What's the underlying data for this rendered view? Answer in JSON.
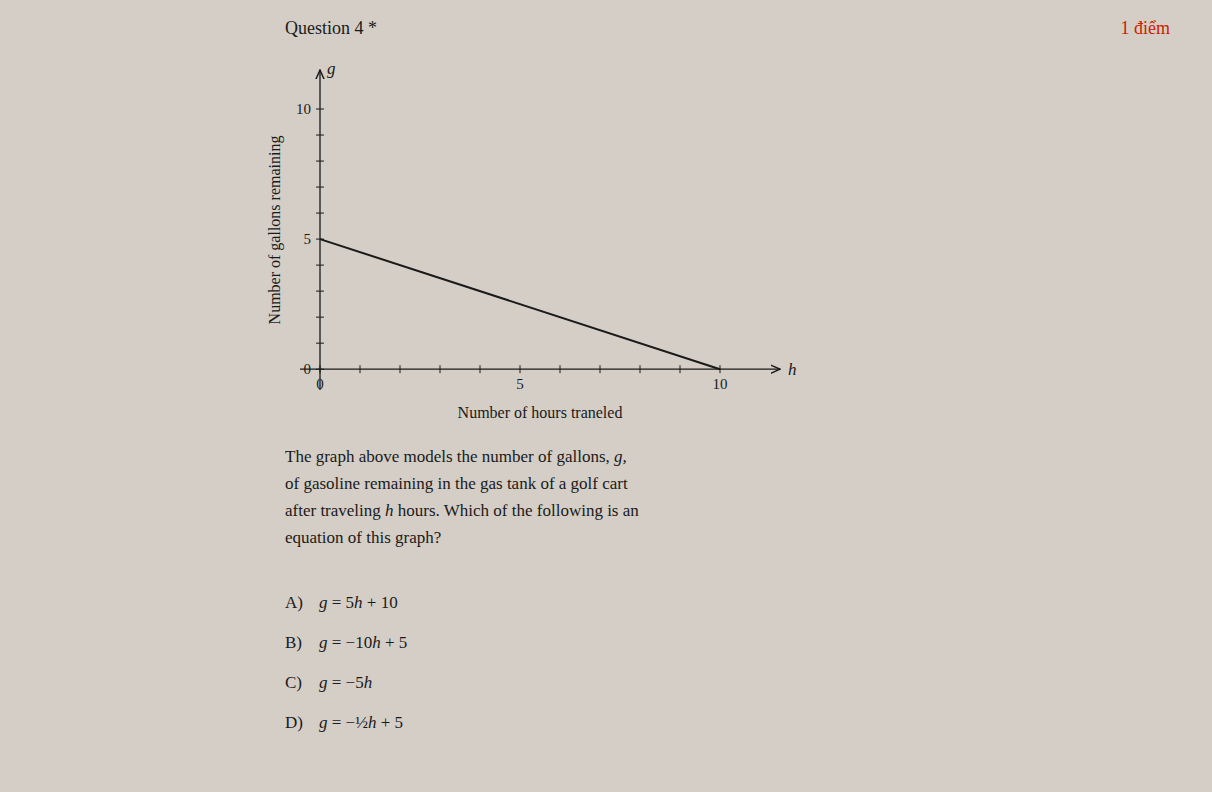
{
  "chart_data": {
    "type": "line",
    "title": "Question 4 *",
    "score": "1 điểm",
    "x": [
      0,
      10
    ],
    "series": [
      {
        "values": [
          5,
          0
        ],
        "color": "#1a1a1a"
      }
    ],
    "xlabel": "Number of hours traneled",
    "ylabel": "Number of gallons remaining",
    "x_axis_variable": "h",
    "y_axis_variable": "g",
    "xlim": [
      -0.5,
      11.5
    ],
    "ylim": [
      -0.8,
      11.5
    ],
    "xticks": [
      0,
      {
        "value": 1,
        "label": null
      },
      {
        "value": 2,
        "label": null
      },
      {
        "value": 3,
        "label": null
      },
      {
        "value": 4,
        "label": null
      },
      5,
      {
        "value": 6,
        "label": null
      },
      {
        "value": 7,
        "label": null
      },
      {
        "value": 8,
        "label": null
      },
      {
        "value": 9,
        "label": null
      },
      10
    ],
    "yticks": [
      0,
      {
        "value": 1,
        "label": null
      },
      {
        "value": 2,
        "label": null
      },
      {
        "value": 3,
        "label": null
      },
      {
        "value": 4,
        "label": null
      },
      5,
      {
        "value": 6,
        "label": null
      },
      {
        "value": 7,
        "label": null
      },
      {
        "value": 8,
        "label": null
      },
      {
        "value": 9,
        "label": null
      },
      10
    ],
    "grid": false,
    "question_lines": [
      [
        "The graph above models the number of gallons, ",
        "g,"
      ],
      [
        "of gasoline remaining in the gas tank of a golf cart"
      ],
      [
        "after traveling ",
        "h",
        " hours. Which of the following is an"
      ],
      [
        "equation of this graph?"
      ]
    ],
    "choices": [
      {
        "label": "A)",
        "text": "g = 5h + 10"
      },
      {
        "label": "B)",
        "text": "g = −10h + 5"
      },
      {
        "label": "C)",
        "text": "g = −5h"
      },
      {
        "label": "D)",
        "text": "g = −½h + 5"
      }
    ]
  }
}
